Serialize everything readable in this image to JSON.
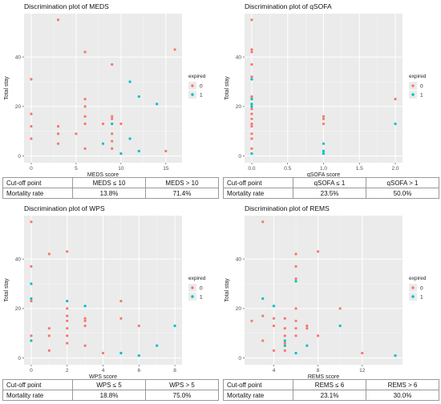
{
  "colors": {
    "expired_0": "#F8766D",
    "expired_1": "#00BFC4",
    "panel_bg": "#EBEBEB",
    "grid": "#FFFFFF"
  },
  "legend": {
    "title": "expired",
    "labels": [
      "0",
      "1"
    ]
  },
  "panels": [
    {
      "title": "Discrimination plot of MEDS",
      "table": [
        [
          "Cut-off point",
          "MEDS ≤ 10",
          "MEDS > 10"
        ],
        [
          "Mortality rate",
          "13.8%",
          "71.4%"
        ]
      ]
    },
    {
      "title": "Discrimination plot of qSOFA",
      "table": [
        [
          "Cut-off point",
          "qSOFA ≤ 1",
          "qSOFA > 1"
        ],
        [
          "Mortality rate",
          "23.5%",
          "50.0%"
        ]
      ]
    },
    {
      "title": "Discrimination plot of WPS",
      "table": [
        [
          "Cut-off point",
          "WPS ≤ 5",
          "WPS > 5"
        ],
        [
          "Mortality rate",
          "18.8%",
          "75.0%"
        ]
      ]
    },
    {
      "title": "Discrimination plot of REMS",
      "table": [
        [
          "Cut-off point",
          "REMS ≤ 6",
          "REMS > 6"
        ],
        [
          "Mortality rate",
          "23.1%",
          "30.0%"
        ]
      ]
    }
  ],
  "chart_data": [
    {
      "type": "scatter",
      "title": "Discrimination plot of MEDS",
      "xlabel": "MEDS score",
      "ylabel": "Total stay",
      "xlim": [
        -0.8,
        16.8
      ],
      "ylim": [
        -2.7,
        57.5
      ],
      "xticks": [
        0,
        5,
        10,
        15
      ],
      "yticks": [
        0,
        20,
        40
      ],
      "legend": "right",
      "series": [
        {
          "name": "0",
          "points": [
            [
              0,
              31
            ],
            [
              0,
              17
            ],
            [
              0,
              12
            ],
            [
              0,
              7
            ],
            [
              3,
              55
            ],
            [
              3,
              12
            ],
            [
              3,
              9
            ],
            [
              3,
              5
            ],
            [
              5,
              9
            ],
            [
              6,
              42
            ],
            [
              6,
              23
            ],
            [
              6,
              20
            ],
            [
              6,
              16
            ],
            [
              6,
              13
            ],
            [
              6,
              3
            ],
            [
              8,
              13
            ],
            [
              9,
              37
            ],
            [
              9,
              16
            ],
            [
              9,
              15
            ],
            [
              9,
              9
            ],
            [
              9,
              6
            ],
            [
              9,
              3
            ],
            [
              10,
              13
            ],
            [
              15,
              2
            ],
            [
              16,
              43
            ]
          ]
        },
        {
          "name": "1",
          "points": [
            [
              8,
              5
            ],
            [
              9,
              13
            ],
            [
              10,
              1
            ],
            [
              11,
              30
            ],
            [
              11,
              7
            ],
            [
              12,
              24
            ],
            [
              12,
              2
            ],
            [
              14,
              21
            ]
          ]
        }
      ]
    },
    {
      "type": "scatter",
      "title": "Discrimination plot of qSOFA",
      "xlabel": "qSOFA score",
      "ylabel": "Total stay",
      "xlim": [
        -0.1,
        2.1
      ],
      "ylim": [
        -2.7,
        57.5
      ],
      "xticks": [
        0.0,
        0.5,
        1.0,
        1.5,
        2.0
      ],
      "yticks": [
        0,
        20,
        40
      ],
      "legend": "right",
      "series": [
        {
          "name": "0",
          "points": [
            [
              0,
              55
            ],
            [
              0,
              43
            ],
            [
              0,
              42
            ],
            [
              0,
              37
            ],
            [
              0,
              32
            ],
            [
              0,
              24
            ],
            [
              0,
              19
            ],
            [
              0,
              17
            ],
            [
              0,
              15
            ],
            [
              0,
              13
            ],
            [
              0,
              12
            ],
            [
              0,
              9
            ],
            [
              0,
              7
            ],
            [
              0,
              3
            ],
            [
              1,
              16
            ],
            [
              1,
              15
            ],
            [
              1,
              13
            ],
            [
              2,
              23
            ]
          ]
        },
        {
          "name": "1",
          "points": [
            [
              0,
              31
            ],
            [
              0,
              23
            ],
            [
              0,
              21
            ],
            [
              0,
              20
            ],
            [
              0,
              1
            ],
            [
              1,
              5
            ],
            [
              1,
              2
            ],
            [
              1,
              1
            ],
            [
              2,
              13
            ]
          ]
        }
      ]
    },
    {
      "type": "scatter",
      "title": "Discrimination plot of WPS",
      "xlabel": "WPS score",
      "ylabel": "Total stay",
      "xlim": [
        -0.4,
        8.4
      ],
      "ylim": [
        -2.7,
        57.5
      ],
      "xticks": [
        0,
        2,
        4,
        6,
        8
      ],
      "yticks": [
        0,
        20,
        40
      ],
      "legend": "right",
      "series": [
        {
          "name": "0",
          "points": [
            [
              0,
              55
            ],
            [
              0,
              37
            ],
            [
              0,
              23
            ],
            [
              0,
              9
            ],
            [
              1,
              42
            ],
            [
              1,
              12
            ],
            [
              1,
              9
            ],
            [
              1,
              3
            ],
            [
              2,
              43
            ],
            [
              2,
              20
            ],
            [
              2,
              17
            ],
            [
              2,
              15
            ],
            [
              2,
              12
            ],
            [
              2,
              9
            ],
            [
              2,
              6
            ],
            [
              3,
              16
            ],
            [
              3,
              15
            ],
            [
              3,
              13
            ],
            [
              3,
              5
            ],
            [
              4,
              2
            ],
            [
              5,
              23
            ],
            [
              5,
              16
            ],
            [
              6,
              13
            ]
          ]
        },
        {
          "name": "1",
          "points": [
            [
              0,
              30
            ],
            [
              0,
              24
            ],
            [
              0,
              7
            ],
            [
              2,
              23
            ],
            [
              3,
              21
            ],
            [
              5,
              2
            ],
            [
              6,
              1
            ],
            [
              7,
              5
            ],
            [
              8,
              13
            ]
          ]
        }
      ]
    },
    {
      "type": "scatter",
      "title": "Discrimination plot of REMS",
      "xlabel": "REMS score",
      "ylabel": "Total stay",
      "xlim": [
        1.35,
        15.65
      ],
      "ylim": [
        -2.7,
        57.5
      ],
      "xticks": [
        4,
        8,
        12
      ],
      "yticks": [
        0,
        20,
        40
      ],
      "legend": "right",
      "series": [
        {
          "name": "0",
          "points": [
            [
              2,
              15
            ],
            [
              3,
              55
            ],
            [
              3,
              17
            ],
            [
              3,
              7
            ],
            [
              4,
              16
            ],
            [
              4,
              13
            ],
            [
              4,
              3
            ],
            [
              5,
              16
            ],
            [
              5,
              12
            ],
            [
              5,
              9
            ],
            [
              5,
              6
            ],
            [
              5,
              3
            ],
            [
              6,
              42
            ],
            [
              6,
              37
            ],
            [
              6,
              32
            ],
            [
              6,
              20
            ],
            [
              6,
              15
            ],
            [
              6,
              12
            ],
            [
              6,
              9
            ],
            [
              7,
              13
            ],
            [
              7,
              12
            ],
            [
              8,
              43
            ],
            [
              8,
              9
            ],
            [
              10,
              20
            ],
            [
              12,
              2
            ]
          ]
        },
        {
          "name": "1",
          "points": [
            [
              3,
              24
            ],
            [
              4,
              21
            ],
            [
              5,
              7
            ],
            [
              5,
              5
            ],
            [
              6,
              31
            ],
            [
              6,
              2
            ],
            [
              7,
              5
            ],
            [
              10,
              13
            ],
            [
              15,
              1
            ]
          ]
        }
      ]
    }
  ]
}
